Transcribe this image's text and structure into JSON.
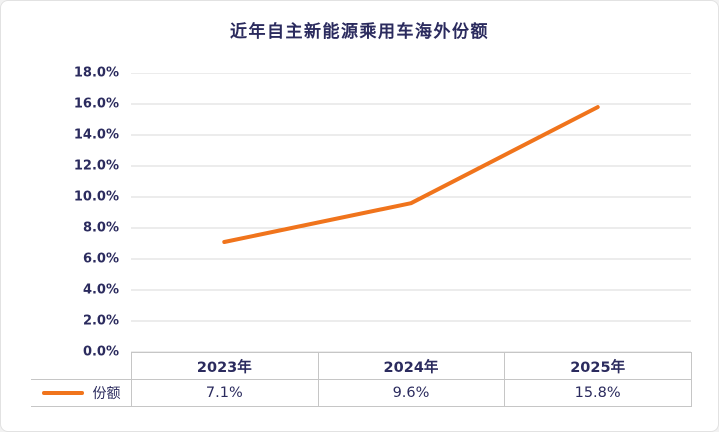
{
  "chart_data": {
    "type": "line",
    "title": "近年自主新能源乘用车海外份额",
    "categories": [
      "2023年",
      "2024年",
      "2025年"
    ],
    "series": [
      {
        "name": "份额",
        "values": [
          7.1,
          9.6,
          15.8
        ],
        "value_labels": [
          "7.1%",
          "9.6%",
          "15.8%"
        ]
      }
    ],
    "ylim": [
      0,
      18
    ],
    "yticks": [
      0,
      2,
      4,
      6,
      8,
      10,
      12,
      14,
      16,
      18
    ],
    "ytick_labels": [
      "0.0%",
      "2.0%",
      "4.0%",
      "6.0%",
      "8.0%",
      "10.0%",
      "12.0%",
      "14.0%",
      "16.0%",
      "18.0%"
    ],
    "grid": true,
    "legend_position": "bottom-table-left",
    "line_color": "#F0741C"
  },
  "colors": {
    "text": "#2B2B5E",
    "grid": "#D9D9D9",
    "table_border": "#C6C6C6",
    "frame_border": "#E2E2E2",
    "background": "#FFFFFF",
    "line": "#F0741C"
  }
}
